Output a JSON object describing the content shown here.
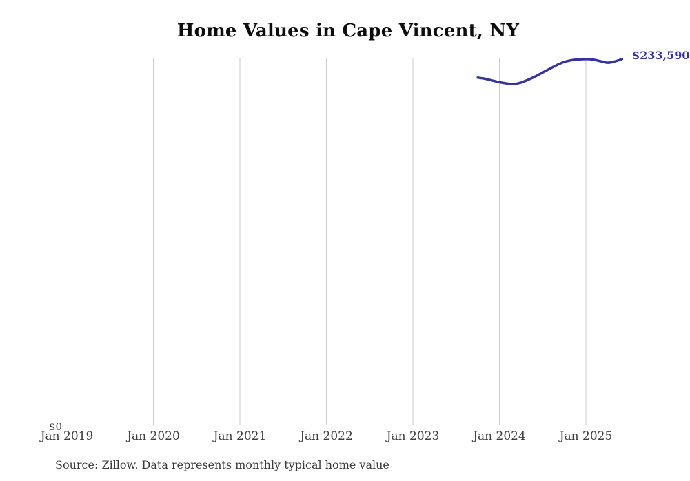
{
  "page": {
    "title": "Home Values in Cape Vincent, NY",
    "source_note": "Source: Zillow. Data represents monthly typical home value"
  },
  "chart_data": {
    "type": "line",
    "title": "Home Values in Cape Vincent, NY",
    "x_ticks": [
      "Jan 2019",
      "Jan 2020",
      "Jan 2021",
      "Jan 2022",
      "Jan 2023",
      "Jan 2024",
      "Jan 2025"
    ],
    "y_tick_labels": [
      "$0"
    ],
    "end_label": "$233,590",
    "x": [
      "Oct 2023",
      "Nov 2023",
      "Dec 2023",
      "Jan 2024",
      "Feb 2024",
      "Mar 2024",
      "Apr 2024",
      "May 2024",
      "Jun 2024",
      "Jul 2024",
      "Aug 2024",
      "Sep 2024",
      "Oct 2024",
      "Nov 2024",
      "Dec 2024",
      "Jan 2025",
      "Feb 2025",
      "Mar 2025",
      "Apr 2025",
      "May 2025",
      "Jun 2025"
    ],
    "values": [
      221800,
      221100,
      220000,
      218900,
      218100,
      217800,
      218700,
      220500,
      222600,
      225100,
      227500,
      229900,
      231800,
      232900,
      233400,
      233600,
      233300,
      232300,
      231300,
      232100,
      233590
    ],
    "ylim": [
      0,
      234000
    ],
    "grid": "vertical-only",
    "legend": "none",
    "line_color": "#34349d",
    "grid_color": "#cccccc",
    "label_color": "#2f2f9d"
  }
}
